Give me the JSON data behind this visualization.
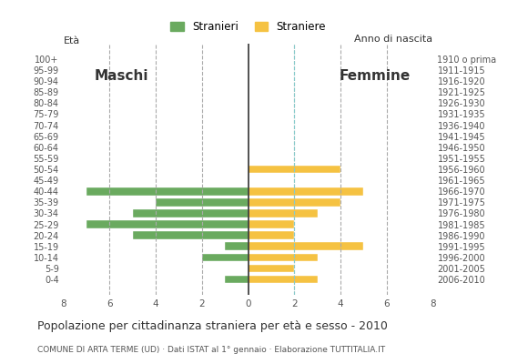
{
  "age_groups": [
    "100+",
    "95-99",
    "90-94",
    "85-89",
    "80-84",
    "75-79",
    "70-74",
    "65-69",
    "60-64",
    "55-59",
    "50-54",
    "45-49",
    "40-44",
    "35-39",
    "30-34",
    "25-29",
    "20-24",
    "15-19",
    "10-14",
    "5-9",
    "0-4"
  ],
  "birth_years": [
    "1910 o prima",
    "1911-1915",
    "1916-1920",
    "1921-1925",
    "1926-1930",
    "1931-1935",
    "1936-1940",
    "1941-1945",
    "1946-1950",
    "1951-1955",
    "1956-1960",
    "1961-1965",
    "1966-1970",
    "1971-1975",
    "1976-1980",
    "1981-1985",
    "1986-1990",
    "1991-1995",
    "1996-2000",
    "2001-2005",
    "2006-2010"
  ],
  "males": [
    0,
    0,
    0,
    0,
    0,
    0,
    0,
    0,
    0,
    0,
    0,
    0,
    7,
    4,
    5,
    7,
    5,
    1,
    2,
    0,
    1
  ],
  "females": [
    0,
    0,
    0,
    0,
    0,
    0,
    0,
    0,
    0,
    0,
    4,
    0,
    5,
    4,
    3,
    2,
    2,
    5,
    3,
    2,
    3
  ],
  "male_color": "#6aaa5f",
  "female_color": "#f5c242",
  "title": "Popolazione per cittadinanza straniera per età e sesso - 2010",
  "subtitle": "COMUNE DI ARTA TERME (UD) · Dati ISTAT al 1° gennaio · Elaborazione TUTTITALIA.IT",
  "label_eta": "Età",
  "label_anno": "Anno di nascita",
  "legend_male": "Stranieri",
  "legend_female": "Straniere",
  "label_maschi": "Maschi",
  "label_femmine": "Femmine",
  "xlim": 8,
  "background_color": "#ffffff",
  "grid_color": "#aaaaaa",
  "axis_color": "#333333",
  "text_color": "#555555",
  "dashed_color": "#88cccc"
}
